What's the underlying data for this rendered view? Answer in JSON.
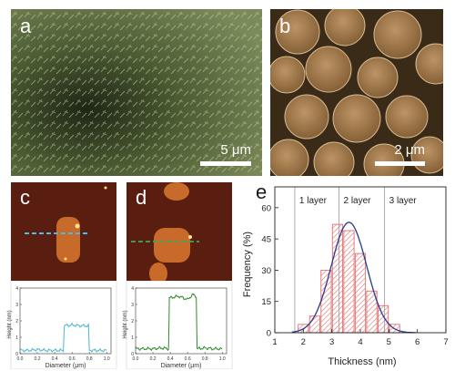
{
  "panels": {
    "a": {
      "label": "a",
      "scale_bar": "5 μm"
    },
    "b": {
      "label": "b",
      "scale_bar": "2 μm"
    },
    "c": {
      "label": "c",
      "profile": {
        "ylabel": "Height (nm)",
        "xlabel": "Diameter (μm)",
        "yticks": [
          "0",
          "1",
          "2",
          "3",
          "4"
        ],
        "xticks": [
          "0.0",
          "0.2",
          "0.4",
          "0.6",
          "0.8",
          "1.0"
        ]
      }
    },
    "d": {
      "label": "d",
      "profile": {
        "ylabel": "Height (nm)",
        "xlabel": "Diameter (μm)",
        "yticks": [
          "0",
          "1",
          "2",
          "3",
          "4"
        ],
        "xticks": [
          "0.0",
          "0.2",
          "0.4",
          "0.6",
          "0.8",
          "1.0"
        ]
      }
    },
    "e": {
      "label": "e"
    }
  },
  "colors": {
    "profile_c": "#4cb8c8",
    "profile_d": "#2e8b2e",
    "histogram_bar": "#e07070",
    "fit_curve": "#2b3a8c",
    "afm_background": "#5a1e10",
    "afm_flake": "#c86a2a"
  },
  "chart_data": [
    {
      "type": "line",
      "panel": "c",
      "xlabel": "Diameter (μm)",
      "ylabel": "Height (nm)",
      "xlim": [
        0,
        1.05
      ],
      "ylim": [
        0,
        4
      ],
      "x": [
        0.0,
        0.1,
        0.2,
        0.3,
        0.4,
        0.5,
        0.51,
        0.6,
        0.7,
        0.79,
        0.8,
        0.9,
        1.0
      ],
      "y": [
        0.2,
        0.2,
        0.25,
        0.2,
        0.2,
        0.2,
        1.7,
        1.75,
        1.7,
        1.7,
        0.2,
        0.2,
        0.2
      ]
    },
    {
      "type": "line",
      "panel": "d",
      "xlabel": "Diameter (μm)",
      "ylabel": "Height (nm)",
      "xlim": [
        0,
        1.05
      ],
      "ylim": [
        0,
        4
      ],
      "x": [
        0.0,
        0.1,
        0.2,
        0.3,
        0.38,
        0.39,
        0.5,
        0.6,
        0.66,
        0.7,
        0.71,
        0.8,
        0.9,
        1.0
      ],
      "y": [
        0.3,
        0.3,
        0.3,
        0.35,
        0.3,
        3.4,
        3.5,
        3.3,
        3.6,
        3.5,
        0.3,
        0.35,
        0.3,
        0.3
      ]
    },
    {
      "type": "bar",
      "panel": "e",
      "xlabel": "Thickness (nm)",
      "ylabel": "Frequency (%)",
      "xlim": [
        1,
        7
      ],
      "ylim": [
        0,
        70
      ],
      "xticks": [
        1,
        2,
        3,
        4,
        5,
        6,
        7
      ],
      "yticks": [
        0,
        15,
        30,
        45,
        60
      ],
      "bin_centers": [
        2.0,
        2.4,
        2.8,
        3.2,
        3.6,
        4.0,
        4.4,
        4.8,
        5.2
      ],
      "values": [
        4,
        8,
        30,
        52,
        49,
        38,
        20,
        13,
        4
      ],
      "fit": {
        "type": "gaussian",
        "mean": 3.6,
        "sigma": 0.62,
        "peak": 53
      },
      "annotations": [
        {
          "label": "1 layer",
          "x": 1.7
        },
        {
          "label": "2 layer",
          "x": 3.25
        },
        {
          "label": "3 layer",
          "x": 4.85
        }
      ]
    }
  ]
}
